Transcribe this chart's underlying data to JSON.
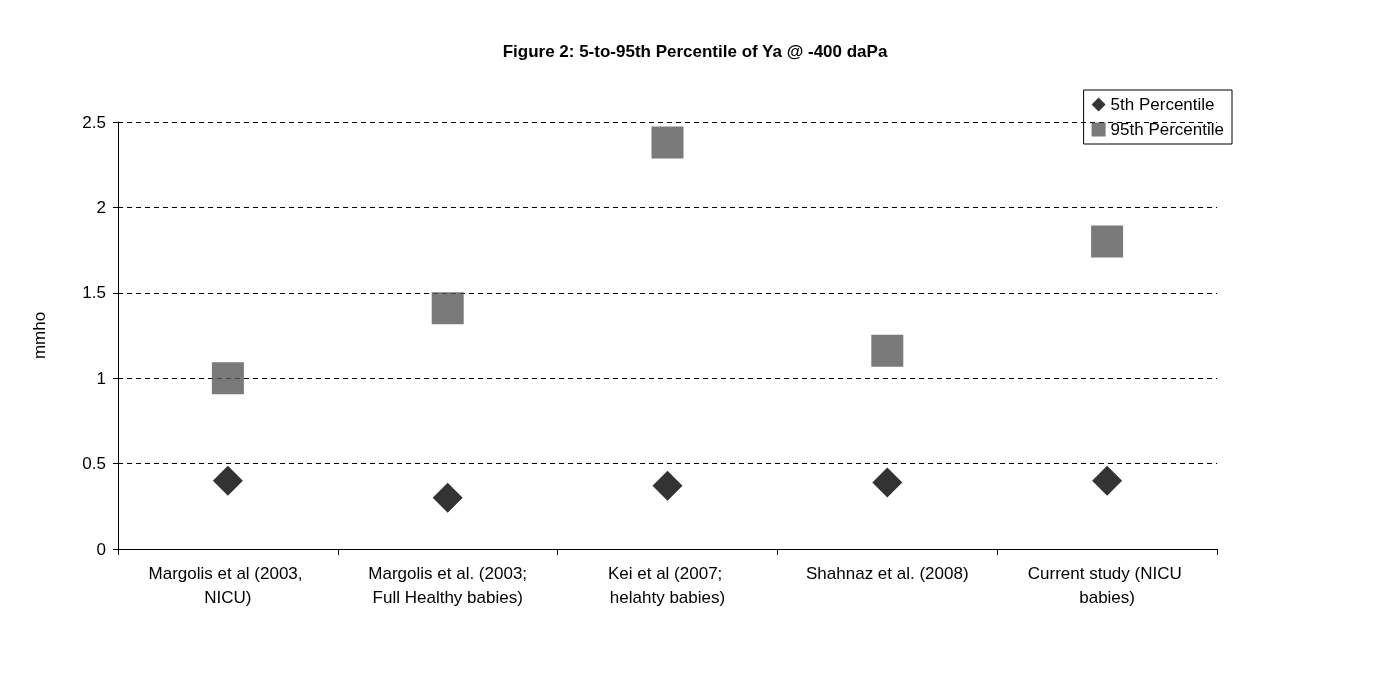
{
  "chart_data": {
    "type": "scatter",
    "title": "Figure 2: 5-to-95th Percentile of Ya @ -400 daPa",
    "ylabel": "mmho",
    "categories": [
      "Margolis et al (2003, NICU)",
      "Margolis et al. (2003;Full Healthy babies)",
      "Kei et al (2007; helahty babies)",
      "Shahnaz et al. (2008)",
      "Current study (NICU babies)"
    ],
    "series": [
      {
        "name": "5th Percentile",
        "color": "#000000",
        "marker": "diamond",
        "values": [
          0.4,
          0.3,
          0.37,
          0.39,
          0.4
        ]
      },
      {
        "name": "95th Percentile",
        "color": "#595959",
        "marker": "square",
        "values": [
          1.0,
          1.41,
          2.38,
          1.16,
          1.8
        ]
      }
    ],
    "ylim": [
      0,
      2.5
    ],
    "yticks": [
      0,
      0.5,
      1,
      1.5,
      2,
      2.5
    ],
    "grid": "y",
    "legend": "top right"
  }
}
